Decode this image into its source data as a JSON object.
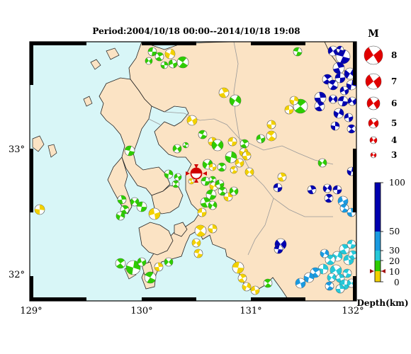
{
  "title": "Period:2004/10/18 00:00--2014/10/18 19:08",
  "lon_labels": [
    "129°",
    "130°",
    "131°",
    "132°"
  ],
  "lat_labels": [
    "33°",
    "32°"
  ],
  "magnitude_legend": {
    "header": "M",
    "items": [
      "8",
      "7",
      "6",
      "5",
      "4",
      "3"
    ]
  },
  "depth_legend": {
    "label": "Depth(km)",
    "ticks": [
      "100",
      "50",
      "30",
      "20",
      "10",
      "0"
    ],
    "colors": {
      "0-10": "#f2d100",
      "10-20": "#2ecc00",
      "20-30": "#25c8d8",
      "30-50": "#1a9ae0",
      "50-100": "#0000b0"
    },
    "current_marker_depth": 10
  },
  "colors": {
    "sea": "#d8f6f7",
    "land": "#fbe3c4",
    "coast": "#222222",
    "boundary": "#999999",
    "frame": "#000000",
    "mainshock": "#d00000"
  }
}
